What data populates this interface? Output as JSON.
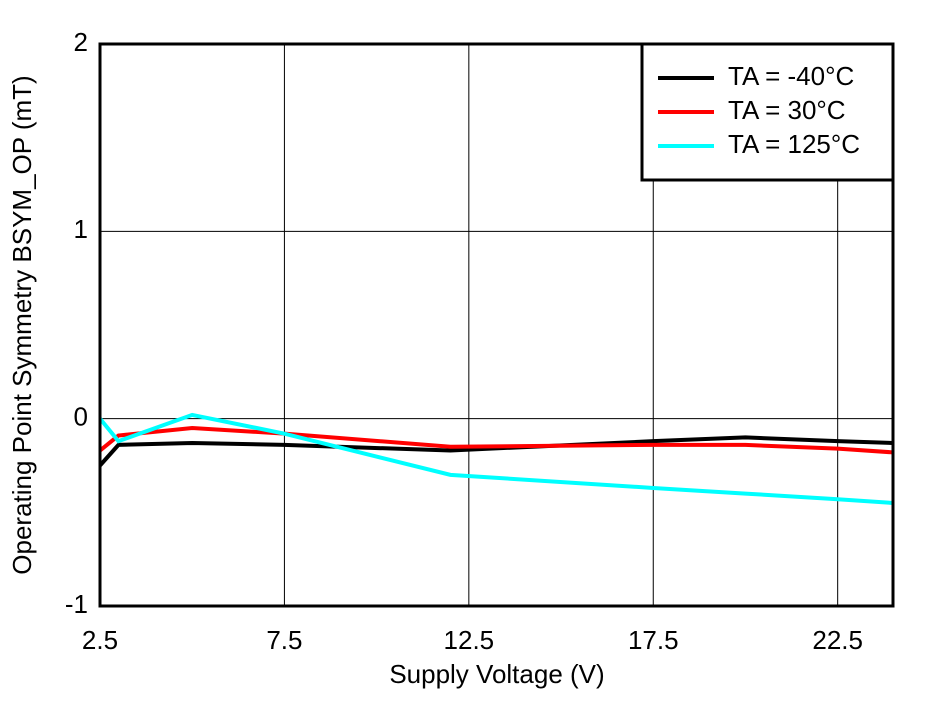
{
  "chart_data": {
    "type": "line",
    "xlabel": "Supply Voltage (V)",
    "ylabel": "Operating Point Symmetry BSYM_OP (mT)",
    "x": [
      2.5,
      3,
      5,
      7.5,
      12,
      17.5,
      20,
      22.5,
      24
    ],
    "series": [
      {
        "name": "TA = -40°C",
        "color": "#000000",
        "values": [
          -0.25,
          -0.14,
          -0.13,
          -0.14,
          -0.17,
          -0.12,
          -0.1,
          -0.12,
          -0.13
        ]
      },
      {
        "name": "TA = 30°C",
        "color": "#ff0000",
        "values": [
          -0.17,
          -0.09,
          -0.05,
          -0.08,
          -0.15,
          -0.14,
          -0.14,
          -0.16,
          -0.18
        ]
      },
      {
        "name": "TA = 125°C",
        "color": "#00ffff",
        "values": [
          0.0,
          -0.12,
          0.02,
          -0.08,
          -0.3,
          -0.37,
          -0.4,
          -0.43,
          -0.45
        ]
      }
    ],
    "xlim": [
      2.5,
      24
    ],
    "xticks": [
      2.5,
      7.5,
      12.5,
      17.5,
      22.5
    ],
    "ylim": [
      -1,
      2
    ],
    "yticks": [
      -1,
      0,
      1,
      2
    ],
    "grid": true,
    "legend": "upper right"
  }
}
